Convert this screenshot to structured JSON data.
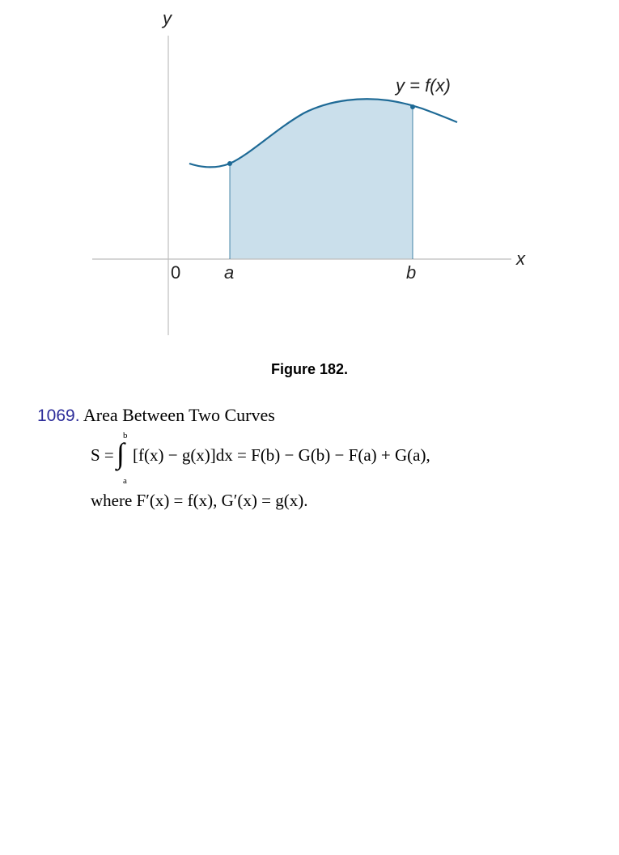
{
  "figure": {
    "y_axis_label": "y",
    "x_axis_label": "x",
    "origin_label": "0",
    "a_label": "a",
    "b_label": "b",
    "curve_label": "y = f(x)",
    "curve_color": "#1e6a96",
    "fill_color": "#cadfeb",
    "axis_color": "#bdbdbd",
    "caption": "Figure 182."
  },
  "section": {
    "number": "1069.",
    "title": "Area Between Two Curves"
  },
  "formula": {
    "lhs": "S =",
    "upper_limit": "b",
    "lower_limit": "a",
    "integral_symbol": "∫",
    "rhs": "[f(x) − g(x)]dx = F(b) − G(b) − F(a) + G(a),",
    "where_line": "where  F′(x) = f(x),  G′(x) = g(x)."
  }
}
